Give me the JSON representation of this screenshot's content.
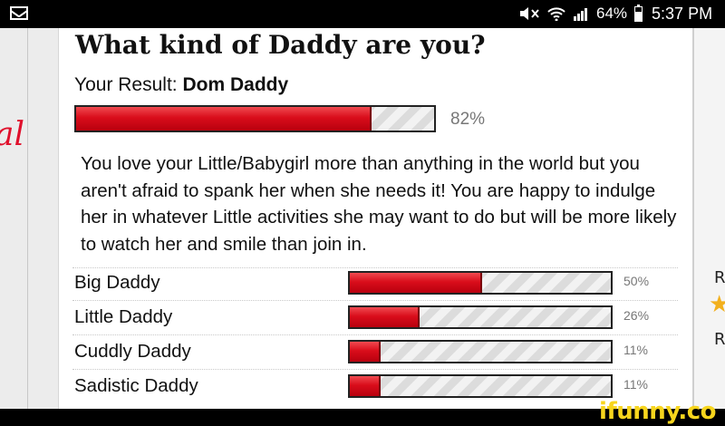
{
  "status_bar": {
    "battery": "64%",
    "time": "5:37 PM",
    "icons": [
      "mail-icon",
      "mute-icon",
      "wifi-icon",
      "signal-icon",
      "battery-icon"
    ]
  },
  "quiz": {
    "title": "What kind of Daddy are you?",
    "result_prefix": "Your Result:",
    "result_name": "Dom Daddy",
    "result_percent_label": "82%",
    "result_percent": 82,
    "description": "You love your Little/Babygirl more than anything in the world but you aren't afraid to spank her when she needs it! You are happy to indulge her in whatever Little activities she may want to do but will be more likely to watch her and smile than join in.",
    "other_results": [
      {
        "label": "Big Daddy",
        "percent": 50,
        "percent_label": "50%"
      },
      {
        "label": "Little Daddy",
        "percent": 26,
        "percent_label": "26%"
      },
      {
        "label": "Cuddly Daddy",
        "percent": 11,
        "percent_label": "11%"
      },
      {
        "label": "Sadistic Daddy",
        "percent": 11,
        "percent_label": "11%"
      }
    ]
  },
  "page_edges": {
    "left_fragment": "al",
    "right_letters": [
      "R",
      "R"
    ]
  },
  "watermark": "ifunny.co",
  "colors": {
    "bar_fill": "#d90d1b",
    "star": "#f2b01e",
    "watermark": "#f7d51d"
  }
}
